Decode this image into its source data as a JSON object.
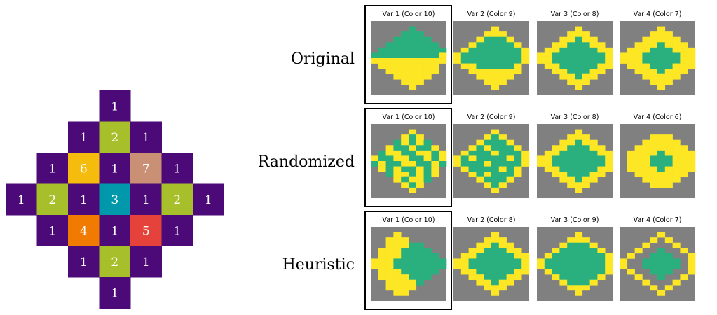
{
  "left_grid": {
    "cells": [
      [
        ".",
        ".",
        ".",
        "1",
        ".",
        ".",
        "."
      ],
      [
        ".",
        ".",
        "1",
        "2",
        "1",
        ".",
        "."
      ],
      [
        ".",
        "1",
        "6",
        "1",
        "7",
        "1",
        "."
      ],
      [
        "1",
        "2",
        "1",
        "3",
        "1",
        "2",
        "1"
      ],
      [
        ".",
        "1",
        "4",
        "1",
        "5",
        "1",
        "."
      ],
      [
        ".",
        ".",
        "1",
        "2",
        "1",
        ".",
        "."
      ],
      [
        ".",
        ".",
        ".",
        "1",
        ".",
        ".",
        "."
      ]
    ],
    "colors": {
      "1": "#4b0a78",
      "2": "#a7bf2b",
      "3": "#0098aa",
      "4": "#f07b00",
      "5": "#e4423a",
      "6": "#f5bc0e",
      "7": "#c99075"
    }
  },
  "palette": {
    "gray": "#808080",
    "yellow": "#fde725",
    "green": "#2ab07f",
    "highlight_border": "#000000"
  },
  "rows": [
    {
      "label": "Original",
      "panels": [
        {
          "title": "Var 1 (Color 10)",
          "pattern": [
            "..........",
            ".....G....",
            "....GGG...",
            "...GGGGG..",
            "..GGGGGGG.",
            ".GGGGGGGGG",
            "GGGGGGGGGY",
            "YYYYYYYYYY",
            ".YYYYYYYY.",
            "..YYYYYYY.",
            "...YYYYY..",
            "....YYY...",
            ".....Y....",
            ".........."
          ]
        },
        {
          "title": "Var 2 (Color 9)",
          "pattern": [
            "..........",
            ".....Y....",
            "....YYY...",
            "...YGGGY..",
            "..YGGGGGY.",
            ".YGGGGGGGY",
            "YGGGGGGGGY",
            "YGGGGGGGGY",
            ".YYGGGGGY.",
            "..YYYYYYY.",
            "...YYYYY..",
            "....YYY...",
            ".....Y....",
            ".........."
          ]
        },
        {
          "title": "Var 3 (Color 8)",
          "pattern": [
            "..........",
            ".....Y....",
            "....YYY...",
            "...YYGYY..",
            "..YYGGGYY.",
            ".YYGGGGGYY",
            "YYGGGGGGGY",
            "YYGGGGGGGY",
            ".YYGGGGGYY",
            "..YYGGGYY.",
            "...YYGYY..",
            "....YYY...",
            ".....Y....",
            ".........."
          ]
        },
        {
          "title": "Var 4 (Color 7)",
          "pattern": [
            "..........",
            ".....Y....",
            "....YYY...",
            "...YYYYY..",
            "..YYYGYYY.",
            ".YYYGGGYYY",
            "YYYGGGGGYY",
            "YYYGGGGGYY",
            ".YYYGGGYYY",
            "..YYYGYYY.",
            "...YYYYY..",
            "....YYY...",
            ".....Y....",
            ".........."
          ]
        }
      ]
    },
    {
      "label": "Randomized",
      "panels": [
        {
          "title": "Var 1 (Color 10)",
          "pattern": [
            "..........",
            ".....Y....",
            "....YGY...",
            "...GYGYG..",
            "..YGGYGGY.",
            ".GYYGGYYGY",
            "YGGYYGGYGY",
            "GYGGYYGGYG",
            ".YGYGGYGY.",
            "..GYYGYGY.",
            "...YGYYG..",
            "....YGY...",
            ".....Y....",
            ".........."
          ]
        },
        {
          "title": "Var 2 (Color 9)",
          "pattern": [
            "..........",
            ".....Y....",
            "....YGY...",
            "...YGGGY..",
            "..YGYGGGY.",
            ".YGGGYGGGY",
            "YGYGGGGYGY",
            "YGGGYGGGGY",
            ".YGGGGYGY.",
            "..YGYGGGY.",
            "...YGGGY..",
            "....YGY...",
            ".....Y....",
            ".........."
          ]
        },
        {
          "title": "Var 3 (Color 8)",
          "pattern": [
            "..........",
            ".....Y....",
            "....YYY...",
            "...YYGYY..",
            "..YYGGGYY.",
            ".YYGGGGGYY",
            "YYGGGGGGGY",
            "YYGGGGGGGY",
            ".YYGGGGGYY",
            "..YYGGGYY.",
            "...YYGYY..",
            "....YYY...",
            ".....Y....",
            ".........."
          ]
        },
        {
          "title": "Var 4 (Color 6)",
          "pattern": [
            "..........",
            "..........",
            "....YYY...",
            "...YYYYY..",
            "..YYYYYYY.",
            ".YYYYGYYYY",
            ".YYYGGGYYY",
            ".YYYGGGYYY",
            ".YYYYGYYYY",
            "..YYYYYYY.",
            "...YYYYY..",
            "....YYY...",
            "..........",
            ".........."
          ]
        }
      ]
    },
    {
      "label": "Heuristic",
      "panels": [
        {
          "title": "Var 1 (Color 10)",
          "pattern": [
            "..........",
            "...Y......",
            "..YYY.....",
            "..YYYGG...",
            ".YYYGGGG..",
            ".YYYGGGGG.",
            "YYYGGGGGGG",
            "YYYGGGGGGG",
            ".YYYGGGGG.",
            ".YYYYGGG..",
            "..YYYYG...",
            "..YYYY....",
            "...YY.....",
            ".........."
          ]
        },
        {
          "title": "Var 2 (Color 8)",
          "pattern": [
            "..........",
            ".....Y....",
            "....YYY...",
            "...YYGYY..",
            "..YYGGGYY.",
            ".YYGGGGGYY",
            "YYGGGGGGGY",
            "YYGGGGGGGY",
            ".YYGGGGGYY",
            "..YYGGGYY.",
            "...YYGYY..",
            "....YYY...",
            ".....Y....",
            ".........."
          ]
        },
        {
          "title": "Var 3 (Color 9)",
          "pattern": [
            "..........",
            ".....Y....",
            "....YYY...",
            "...YGGGY..",
            "..YGGGGGY.",
            ".YGGGGGGGY",
            "YGGGGGGGGY",
            "YGGGGGGGGY",
            ".YGGGGGGGY",
            "..YGGGGGY.",
            "...YGGGY..",
            "....YYY...",
            ".....Y....",
            ".........."
          ]
        },
        {
          "title": "Var 4 (Color 7)",
          "pattern": [
            "..........",
            ".....Y....",
            "....Y.Y...",
            "...Y...Y..",
            "..Y..G..Y.",
            ".Y..GGG..Y",
            "Y..GGGGG.Y",
            "Y..GGGGG.Y",
            ".Y..GGG..Y",
            "..Y..G..Y.",
            "...Y...Y..",
            "....Y.Y...",
            ".....Y....",
            ".........."
          ]
        }
      ]
    }
  ]
}
